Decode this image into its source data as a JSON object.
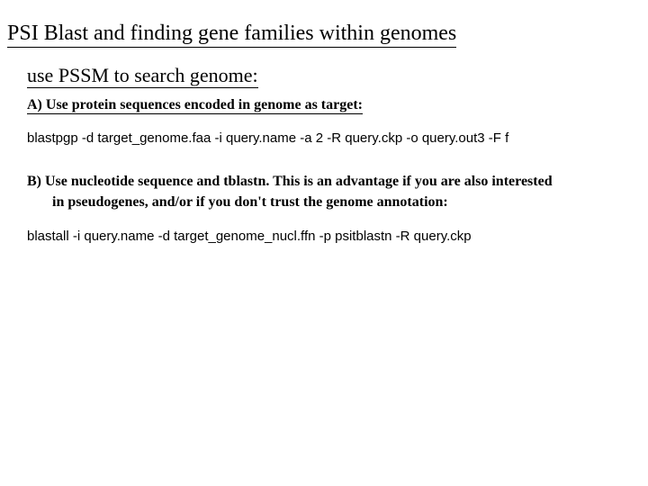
{
  "slide": {
    "title": "PSI Blast and finding gene families within genomes",
    "subtitle": "use PSSM to search genome:",
    "section_a": {
      "label": "A)   Use protein sequences encoded in genome as target:",
      "command": "blastpgp -d target_genome.faa -i query.name -a 2 -R query.ckp -o query.out3 -F f"
    },
    "section_b": {
      "label_line1": "B)   Use nucleotide sequence and tblastn. This is an advantage if you are also interested",
      "label_line2": "in pseudogenes, and/or if you don't trust the genome annotation:",
      "command": "blastall -i query.name -d target_genome_nucl.ffn -p psitblastn -R query.ckp"
    }
  },
  "styling": {
    "background_color": "#ffffff",
    "text_color": "#000000",
    "title_fontsize": 24,
    "subtitle_fontsize": 22,
    "body_fontsize": 16,
    "command_fontsize": 15,
    "serif_font": "Times New Roman",
    "sans_font": "Arial",
    "underline_color": "#000000",
    "underline_width": 1
  }
}
